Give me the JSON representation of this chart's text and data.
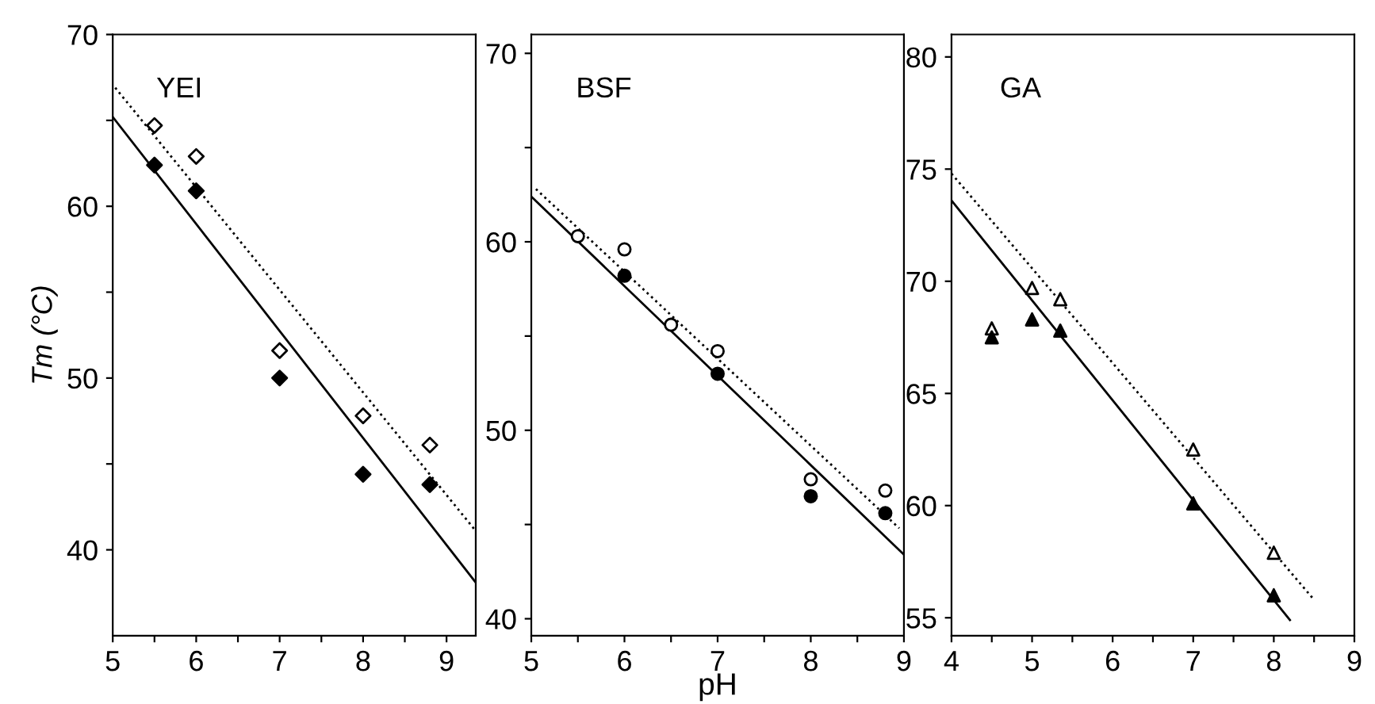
{
  "chart_data": [
    {
      "type": "scatter",
      "title": "YEI",
      "ylabel": "Tm (°C)",
      "xlim": [
        5,
        9.35
      ],
      "ylim": [
        35,
        70
      ],
      "xticks": [
        5,
        {
          "value": 5.5,
          "label": null
        },
        6,
        {
          "value": 6.5,
          "label": null
        },
        7,
        {
          "value": 7.5,
          "label": null
        },
        8,
        {
          "value": 8.5,
          "label": null
        },
        9
      ],
      "yticks": [
        40,
        {
          "value": 45,
          "label": null
        },
        50,
        {
          "value": 55,
          "label": null
        },
        60,
        {
          "value": 65,
          "label": null
        },
        70
      ],
      "grid": false,
      "legend": false,
      "series": [
        {
          "marker": "diamond",
          "color": "#ffffff",
          "x": [
            5.5,
            6,
            7,
            8,
            8.8
          ],
          "values": [
            64.7,
            62.9,
            51.6,
            47.8,
            46.1
          ]
        },
        {
          "marker": "diamond",
          "color": "#000000",
          "x": [
            5.5,
            6,
            7,
            8,
            8.8
          ],
          "values": [
            62.4,
            60.9,
            50,
            44.4,
            43.8
          ]
        },
        {
          "type": "line",
          "marker": "none",
          "line_style": "solid",
          "color": "#000000",
          "x": [
            5,
            9.35
          ],
          "values": [
            65.2,
            38.1
          ]
        },
        {
          "type": "line",
          "marker": "none",
          "line_style": "dotted",
          "color": "#000000",
          "x": [
            5.03,
            9.35
          ],
          "values": [
            66.9,
            41.1
          ]
        }
      ]
    },
    {
      "type": "scatter",
      "title": "BSF",
      "xlabel": "pH",
      "xlim": [
        5,
        9
      ],
      "ylim": [
        39.1,
        71
      ],
      "xticks": [
        5,
        {
          "value": 5.5,
          "label": null
        },
        6,
        {
          "value": 6.5,
          "label": null
        },
        7,
        {
          "value": 7.5,
          "label": null
        },
        8,
        {
          "value": 8.5,
          "label": null
        },
        9
      ],
      "yticks": [
        40,
        {
          "value": 45,
          "label": null
        },
        50,
        {
          "value": 55,
          "label": null
        },
        60,
        {
          "value": 65,
          "label": null
        },
        70
      ],
      "grid": false,
      "legend": false,
      "series": [
        {
          "marker": "circle",
          "color": "#ffffff",
          "x": [
            5.5,
            6,
            6.5,
            7,
            8,
            8.8
          ],
          "values": [
            60.3,
            59.6,
            55.6,
            54.2,
            47.4,
            46.8
          ]
        },
        {
          "marker": "circle",
          "color": "#000000",
          "x": [
            6,
            7,
            8,
            8.8
          ],
          "values": [
            58.2,
            53,
            46.5,
            45.6
          ]
        },
        {
          "type": "line",
          "marker": "none",
          "line_style": "solid",
          "color": "#000000",
          "x": [
            5,
            9
          ],
          "values": [
            62.4,
            43.4
          ]
        },
        {
          "type": "line",
          "marker": "none",
          "line_style": "dotted",
          "color": "#000000",
          "x": [
            5.05,
            8.95
          ],
          "values": [
            62.8,
            44.8
          ]
        }
      ]
    },
    {
      "type": "scatter",
      "title": "GA",
      "xlim": [
        4,
        9
      ],
      "ylim": [
        54.2,
        81
      ],
      "xticks": [
        4,
        {
          "value": 4.5,
          "label": null
        },
        5,
        {
          "value": 5.5,
          "label": null
        },
        6,
        {
          "value": 6.5,
          "label": null
        },
        7,
        {
          "value": 7.5,
          "label": null
        },
        8,
        {
          "value": 8.5,
          "label": null
        },
        9
      ],
      "yticks": [
        55,
        60,
        65,
        70,
        75,
        80
      ],
      "grid": false,
      "legend": false,
      "series": [
        {
          "marker": "triangle",
          "color": "#ffffff",
          "x": [
            4.5,
            5,
            5.35,
            7,
            8
          ],
          "values": [
            67.9,
            69.7,
            69.2,
            62.5,
            57.9
          ]
        },
        {
          "marker": "triangle",
          "color": "#000000",
          "x": [
            4.5,
            5,
            5.35,
            7,
            8
          ],
          "values": [
            67.5,
            68.3,
            67.8,
            60.1,
            56
          ]
        },
        {
          "type": "line",
          "marker": "none",
          "line_style": "solid",
          "color": "#000000",
          "x": [
            4,
            8.2
          ],
          "values": [
            73.6,
            54.9
          ]
        },
        {
          "type": "line",
          "marker": "none",
          "line_style": "dotted",
          "color": "#000000",
          "x": [
            4,
            8.5
          ],
          "values": [
            74.8,
            55.8
          ]
        }
      ]
    }
  ]
}
